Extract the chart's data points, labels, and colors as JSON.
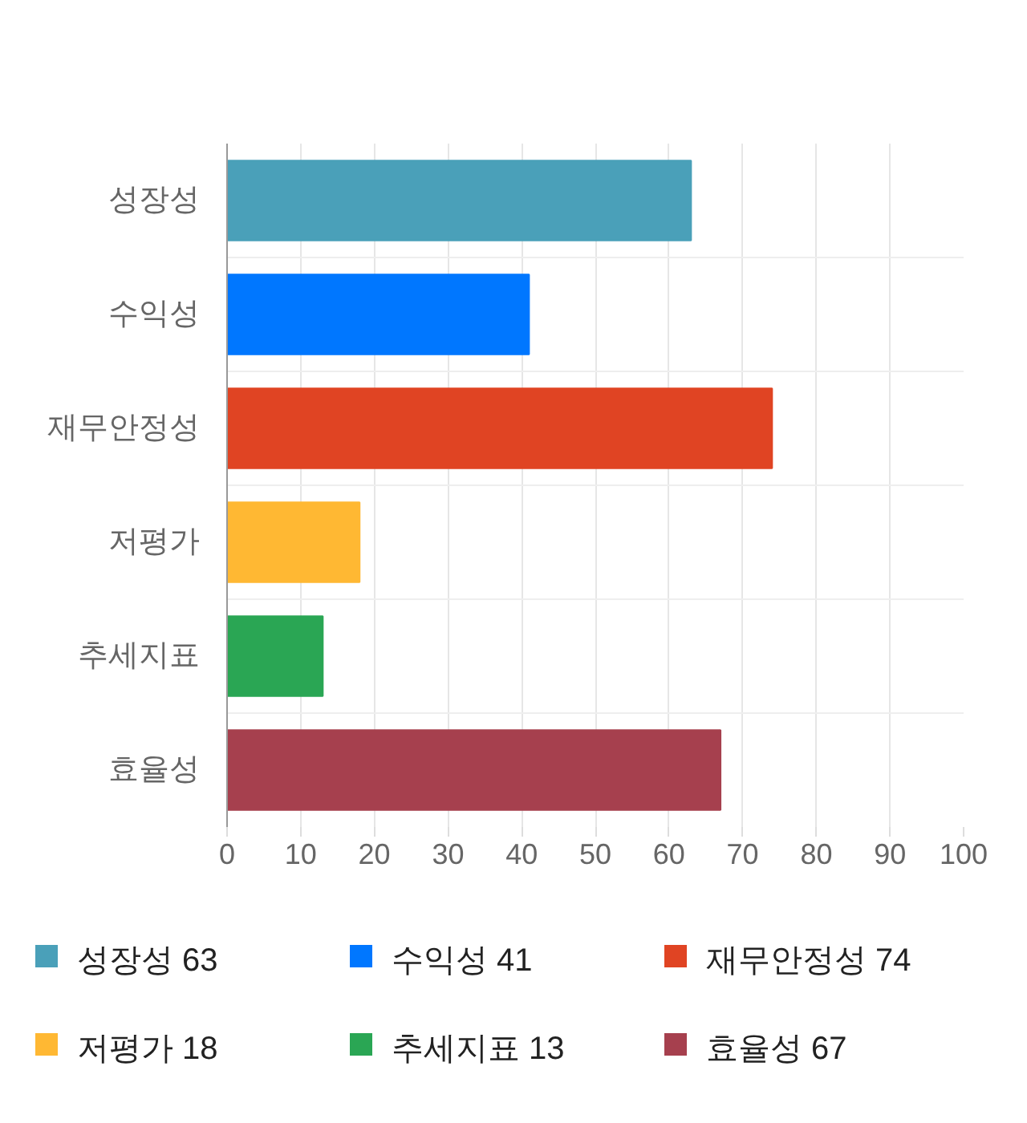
{
  "chart_data": {
    "type": "bar",
    "orientation": "horizontal",
    "stacked": true,
    "categories": [
      "성장성",
      "수익성",
      "재무안정성",
      "저평가",
      "추세지표",
      "효율성"
    ],
    "series": [
      {
        "name": "성장성 63",
        "color": "#4aa0b9",
        "values": [
          63,
          null,
          null,
          null,
          null,
          null
        ]
      },
      {
        "name": "수익성 41",
        "color": "#0077ff",
        "values": [
          null,
          41,
          null,
          null,
          null,
          null
        ]
      },
      {
        "name": "재무안정성 74",
        "color": "#e04423",
        "values": [
          null,
          null,
          74,
          null,
          null,
          null
        ]
      },
      {
        "name": "저평가 18",
        "color": "#ffb833",
        "values": [
          null,
          null,
          null,
          18,
          null,
          null
        ]
      },
      {
        "name": "추세지표 13",
        "color": "#2aa654",
        "values": [
          null,
          null,
          null,
          null,
          13,
          null
        ]
      },
      {
        "name": "효율성 67",
        "color": "#a6404e",
        "values": [
          null,
          null,
          null,
          null,
          null,
          67
        ]
      }
    ],
    "xlim": [
      0,
      100
    ],
    "xticks": [
      0,
      10,
      20,
      30,
      40,
      50,
      60,
      70,
      80,
      90,
      100
    ],
    "grid": true,
    "legend": "bottom"
  }
}
